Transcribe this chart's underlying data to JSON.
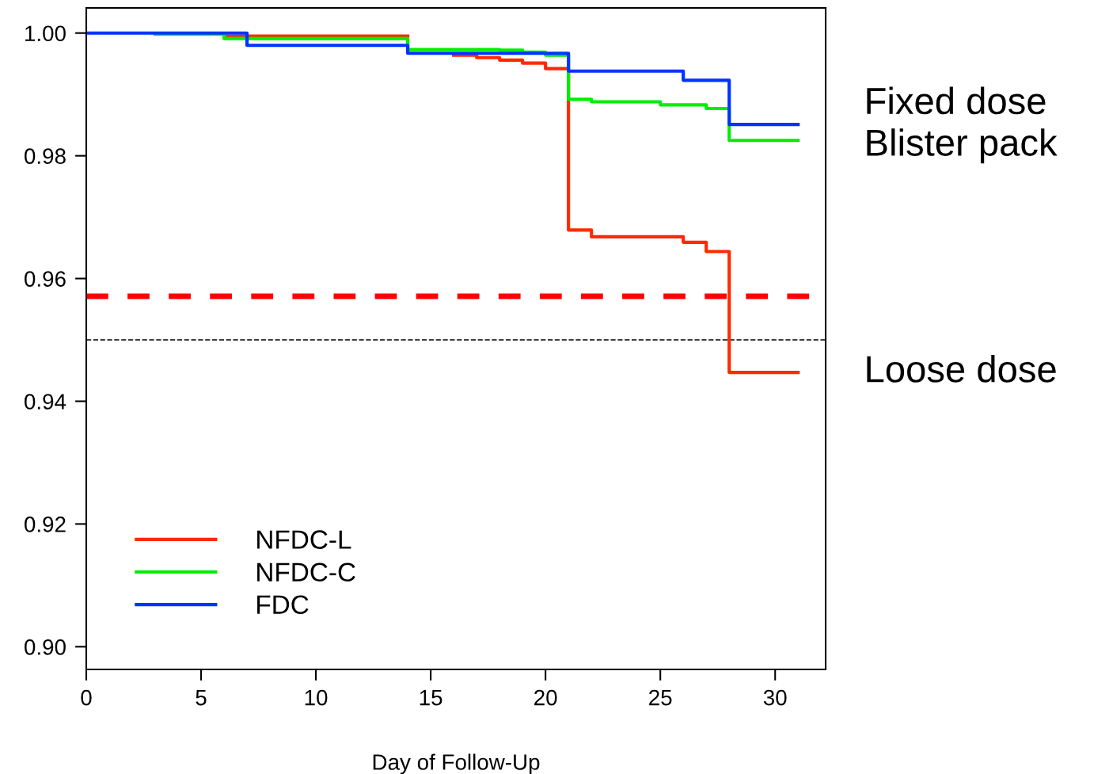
{
  "chart_data": {
    "type": "step",
    "xlabel": "Day of Follow-Up",
    "xlim": [
      0,
      32.2
    ],
    "ylim": [
      0.8963,
      1.0041
    ],
    "xticks": [
      0,
      5,
      10,
      15,
      20,
      25,
      30
    ],
    "yticks": [
      {
        "value": 0.9,
        "label": "0.90"
      },
      {
        "value": 0.92,
        "label": "0.92"
      },
      {
        "value": 0.94,
        "label": "0.94"
      },
      {
        "value": 0.96,
        "label": "0.96"
      },
      {
        "value": 0.98,
        "label": "0.98"
      },
      {
        "value": 1.0,
        "label": "1.00"
      }
    ],
    "grid": false,
    "legend": "bottom left",
    "line_style": "solid",
    "marker": "none",
    "series": [
      {
        "name": "NFDC-L",
        "color": "#ff2a00",
        "x": [
          6,
          14,
          16,
          17,
          18,
          19,
          20,
          21,
          22,
          26,
          27,
          28,
          31
        ],
        "values": [
          0.9995,
          null,
          0.9964,
          0.996,
          0.9956,
          0.9951,
          0.9942,
          0.9679,
          0.9668,
          0.9659,
          0.9644,
          0.9447,
          0.9447
        ]
      },
      {
        "name": "NFDC-C",
        "color": "#00ee00",
        "x": [
          3,
          6,
          14,
          18,
          19,
          20,
          21,
          22,
          25,
          27,
          28,
          31
        ],
        "values": [
          0.9998,
          0.9991,
          0.9973,
          0.9972,
          0.9969,
          0.9964,
          0.9892,
          0.9888,
          0.9883,
          0.9877,
          0.9825,
          0.9825
        ]
      },
      {
        "name": "FDC",
        "color": "#0033ff",
        "x": [
          0,
          7,
          14,
          21,
          26,
          28,
          31
        ],
        "values": [
          1.0,
          0.998,
          0.9967,
          0.9938,
          0.9923,
          0.9851,
          0.9851
        ]
      }
    ],
    "ref_lines": [
      {
        "axis": "y",
        "value": 0.9571,
        "color": "#ff0000",
        "line_style": "dashed",
        "label": null
      },
      {
        "axis": "y",
        "value": 0.95,
        "color": "#000000",
        "line_style": "dashed",
        "label": null
      }
    ],
    "annotations": [
      {
        "text": "Fixed dose\nBlister pack",
        "x": 31,
        "y": 0.985
      },
      {
        "text": "Loose dose",
        "x": 31,
        "y": 0.9447
      }
    ]
  }
}
